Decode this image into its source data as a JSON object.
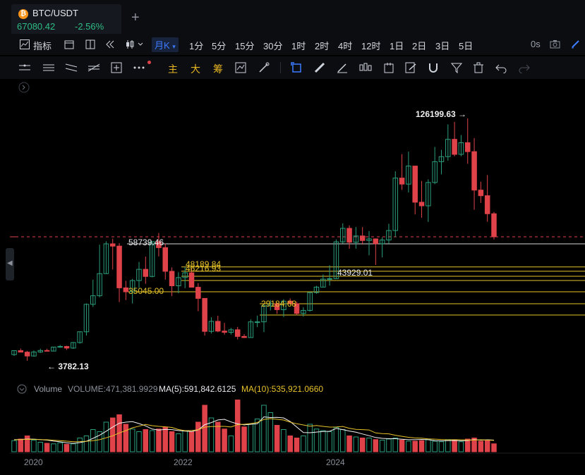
{
  "tab": {
    "pair": "BTC/USDT",
    "price": "67080.42",
    "change": "-2.56%",
    "new_tab": "+"
  },
  "toolbar": {
    "indicator_label": "指标",
    "active_interval": "月K",
    "intervals": [
      "1分",
      "5分",
      "15分",
      "30分",
      "1时",
      "2时",
      "4时",
      "12时",
      "1日",
      "2日",
      "3日",
      "5日"
    ],
    "countdown": "0s"
  },
  "drawing_toolbar": {
    "main_label": "主",
    "big_label": "大",
    "chip_label": "筹"
  },
  "annotations": {
    "ath": "126199.63 →",
    "low": "← 3782.13",
    "high_2021": "58739.46",
    "level_48189": "48189.84",
    "level_46216": "46216.93",
    "level_43929": "43929.01",
    "level_35045": "35045.00",
    "level_29184": "29184.68"
  },
  "volume_legend": {
    "label": "Volume",
    "volume": "VOLUME:471,381.9929",
    "ma5": "MA(5):591,842.6125",
    "ma10": "MA(10):535,921.0660"
  },
  "x_axis": {
    "labels": [
      "2020",
      "2022",
      "2024"
    ]
  },
  "colors": {
    "up": "#2a9d7c",
    "down": "#e0424a",
    "accent": "#3d7bff",
    "level": "#e6c229",
    "ma5": "#f2f2f2",
    "ma10": "#e6c229"
  },
  "chart_data": {
    "type": "candlestick",
    "interval": "monthly",
    "pair": "BTC/USDT",
    "candles": [
      {
        "o": 7200,
        "h": 9500,
        "l": 6500,
        "c": 9350
      },
      {
        "o": 9350,
        "h": 10500,
        "l": 8450,
        "c": 8550
      },
      {
        "o": 8550,
        "h": 9200,
        "l": 3782.13,
        "c": 6420
      },
      {
        "o": 6420,
        "h": 9450,
        "l": 6150,
        "c": 8630
      },
      {
        "o": 8630,
        "h": 10400,
        "l": 8110,
        "c": 9450
      },
      {
        "o": 9450,
        "h": 10380,
        "l": 8900,
        "c": 9140
      },
      {
        "o": 9140,
        "h": 11450,
        "l": 8950,
        "c": 11340
      },
      {
        "o": 11340,
        "h": 12480,
        "l": 10990,
        "c": 11650
      },
      {
        "o": 11650,
        "h": 12050,
        "l": 9820,
        "c": 10780
      },
      {
        "o": 10780,
        "h": 14100,
        "l": 10370,
        "c": 13800
      },
      {
        "o": 13800,
        "h": 19900,
        "l": 13200,
        "c": 19700
      },
      {
        "o": 19700,
        "h": 29300,
        "l": 17600,
        "c": 28990
      },
      {
        "o": 28990,
        "h": 41950,
        "l": 28100,
        "c": 33100
      },
      {
        "o": 33100,
        "h": 58350,
        "l": 32300,
        "c": 45130
      },
      {
        "o": 45130,
        "h": 61800,
        "l": 45000,
        "c": 58740
      },
      {
        "o": 58740,
        "h": 64900,
        "l": 47000,
        "c": 57700
      },
      {
        "o": 57700,
        "h": 59500,
        "l": 30000,
        "c": 37300
      },
      {
        "o": 37300,
        "h": 41300,
        "l": 31000,
        "c": 35040
      },
      {
        "o": 35040,
        "h": 42400,
        "l": 29300,
        "c": 41460
      },
      {
        "o": 41460,
        "h": 50500,
        "l": 37300,
        "c": 47100
      },
      {
        "o": 47100,
        "h": 52900,
        "l": 39600,
        "c": 43820
      },
      {
        "o": 43820,
        "h": 61500,
        "l": 43300,
        "c": 61300
      },
      {
        "o": 61300,
        "h": 69000,
        "l": 53000,
        "c": 57000
      },
      {
        "o": 57000,
        "h": 59000,
        "l": 42000,
        "c": 46200
      },
      {
        "o": 46200,
        "h": 48000,
        "l": 32900,
        "c": 38480
      },
      {
        "o": 38480,
        "h": 45800,
        "l": 34300,
        "c": 43160
      },
      {
        "o": 43160,
        "h": 48190,
        "l": 37100,
        "c": 45510
      },
      {
        "o": 45510,
        "h": 47400,
        "l": 37600,
        "c": 37640
      },
      {
        "o": 37640,
        "h": 40000,
        "l": 26700,
        "c": 31800
      },
      {
        "o": 31800,
        "h": 31900,
        "l": 17600,
        "c": 19920
      },
      {
        "o": 19920,
        "h": 24650,
        "l": 18800,
        "c": 23300
      },
      {
        "o": 23300,
        "h": 25200,
        "l": 19500,
        "c": 20050
      },
      {
        "o": 20050,
        "h": 22800,
        "l": 18150,
        "c": 19420
      },
      {
        "o": 19420,
        "h": 21100,
        "l": 18200,
        "c": 20490
      },
      {
        "o": 20490,
        "h": 21450,
        "l": 15500,
        "c": 17160
      },
      {
        "o": 17160,
        "h": 18400,
        "l": 16250,
        "c": 16540
      },
      {
        "o": 16540,
        "h": 23950,
        "l": 16500,
        "c": 23130
      },
      {
        "o": 23130,
        "h": 25250,
        "l": 21350,
        "c": 23140
      },
      {
        "o": 23140,
        "h": 29180,
        "l": 19550,
        "c": 28480
      },
      {
        "o": 28480,
        "h": 31000,
        "l": 26950,
        "c": 29230
      },
      {
        "o": 29230,
        "h": 29820,
        "l": 25800,
        "c": 27200
      },
      {
        "o": 27200,
        "h": 31400,
        "l": 24750,
        "c": 30470
      },
      {
        "o": 30470,
        "h": 31800,
        "l": 28850,
        "c": 29230
      },
      {
        "o": 29230,
        "h": 30200,
        "l": 25350,
        "c": 25940
      },
      {
        "o": 25940,
        "h": 28000,
        "l": 24900,
        "c": 26960
      },
      {
        "o": 26960,
        "h": 35000,
        "l": 26550,
        "c": 34640
      },
      {
        "o": 34640,
        "h": 38450,
        "l": 34100,
        "c": 37720
      },
      {
        "o": 37720,
        "h": 44700,
        "l": 37600,
        "c": 42280
      },
      {
        "o": 42280,
        "h": 48970,
        "l": 38550,
        "c": 42580
      },
      {
        "o": 42580,
        "h": 63900,
        "l": 42500,
        "c": 61130
      },
      {
        "o": 61130,
        "h": 73800,
        "l": 59100,
        "c": 71300
      },
      {
        "o": 71300,
        "h": 72800,
        "l": 56500,
        "c": 60640
      },
      {
        "o": 60640,
        "h": 71950,
        "l": 56550,
        "c": 67500
      },
      {
        "o": 67500,
        "h": 71950,
        "l": 58400,
        "c": 62700
      },
      {
        "o": 62700,
        "h": 70000,
        "l": 53500,
        "c": 64600
      },
      {
        "o": 64600,
        "h": 65100,
        "l": 49100,
        "c": 58950
      },
      {
        "o": 58950,
        "h": 66500,
        "l": 52550,
        "c": 63300
      },
      {
        "o": 63300,
        "h": 73600,
        "l": 58900,
        "c": 70200
      },
      {
        "o": 70200,
        "h": 99800,
        "l": 66800,
        "c": 96400
      },
      {
        "o": 96400,
        "h": 108350,
        "l": 90500,
        "c": 93400
      },
      {
        "o": 93400,
        "h": 109600,
        "l": 89250,
        "c": 102400
      },
      {
        "o": 102400,
        "h": 102500,
        "l": 78250,
        "c": 84350
      },
      {
        "o": 84350,
        "h": 95000,
        "l": 76600,
        "c": 82550
      },
      {
        "o": 82550,
        "h": 95750,
        "l": 74500,
        "c": 94200
      },
      {
        "o": 94200,
        "h": 111950,
        "l": 93400,
        "c": 104600
      },
      {
        "o": 104600,
        "h": 110500,
        "l": 98250,
        "c": 107100
      },
      {
        "o": 107100,
        "h": 123200,
        "l": 105100,
        "c": 115750
      },
      {
        "o": 115750,
        "h": 124450,
        "l": 107300,
        "c": 108250
      },
      {
        "o": 108250,
        "h": 117900,
        "l": 107300,
        "c": 114050
      },
      {
        "o": 114050,
        "h": 126199.63,
        "l": 103500,
        "c": 109600
      },
      {
        "o": 109600,
        "h": 116400,
        "l": 80600,
        "c": 90400
      },
      {
        "o": 90400,
        "h": 94600,
        "l": 84000,
        "c": 87600
      },
      {
        "o": 87600,
        "h": 97900,
        "l": 74600,
        "c": 78600
      },
      {
        "o": 78600,
        "h": 79500,
        "l": 64000,
        "c": 67080.42
      }
    ],
    "volume": [
      210,
      240,
      300,
      220,
      180,
      160,
      150,
      170,
      140,
      150,
      260,
      300,
      420,
      380,
      560,
      640,
      700,
      520,
      430,
      380,
      420,
      400,
      430,
      460,
      380,
      340,
      400,
      380,
      560,
      880,
      640,
      560,
      430,
      300,
      980,
      470,
      520,
      620,
      880,
      740,
      500,
      420,
      300,
      260,
      300,
      520,
      430,
      400,
      380,
      460,
      420,
      300,
      280,
      260,
      260,
      230,
      220,
      240,
      260,
      220,
      200,
      200,
      210,
      230,
      200,
      190,
      230,
      220,
      190,
      240,
      260,
      200,
      210,
      150
    ],
    "ma5": [
      230,
      232,
      240,
      238,
      230,
      220,
      202,
      188,
      168,
      158,
      174,
      198,
      254,
      312,
      388,
      468,
      540,
      560,
      570,
      534,
      490,
      430,
      410,
      424,
      418,
      402,
      390,
      383,
      414,
      512,
      552,
      602,
      614,
      564,
      526,
      508,
      520,
      530,
      660,
      646,
      650,
      640,
      572,
      468,
      364,
      360,
      372,
      384,
      386,
      442,
      418,
      392,
      370,
      336,
      304,
      270,
      254,
      246,
      246,
      236,
      228,
      228,
      234,
      228,
      210,
      206,
      210,
      214,
      206,
      214,
      230,
      220,
      226,
      220
    ],
    "ma10": [
      225,
      229,
      235,
      234,
      230,
      226,
      218,
      210,
      200,
      191,
      192,
      198,
      210,
      228,
      264,
      302,
      356,
      400,
      454,
      484,
      516,
      494,
      480,
      472,
      460,
      420,
      398,
      402,
      416,
      466,
      476,
      480,
      480,
      468,
      512,
      520,
      534,
      554,
      612,
      626,
      614,
      600,
      560,
      530,
      506,
      484,
      496,
      480,
      466,
      468,
      478,
      444,
      424,
      418,
      412,
      356,
      344,
      338,
      312,
      292,
      274,
      262,
      256,
      244,
      238,
      232,
      226,
      228,
      226,
      222,
      222,
      226,
      222,
      215
    ],
    "levels": [
      {
        "value": 58739.46,
        "label": "58739.46",
        "color": "white"
      },
      {
        "value": 48189.84,
        "label": "48189.84",
        "color": "yellow"
      },
      {
        "value": 46216.93,
        "label": "46216.93",
        "color": "yellow"
      },
      {
        "value": 43929.01,
        "label": "43929.01",
        "color": "yellow"
      },
      {
        "value": 35045.0,
        "label": "35045.00",
        "color": "yellow"
      },
      {
        "value": 29184.68,
        "label": "29184.68",
        "color": "yellow"
      }
    ],
    "current_price": 67080.42,
    "high": 126199.63,
    "low": 3782.13,
    "x_labels": [
      "2020",
      "2022",
      "2024"
    ]
  }
}
